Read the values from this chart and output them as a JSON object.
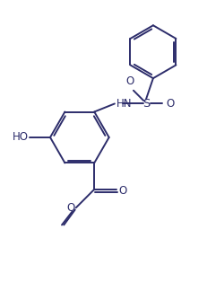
{
  "background_color": "#ffffff",
  "line_color": "#2d2d6b",
  "line_width": 1.4,
  "figsize": [
    2.32,
    3.24
  ],
  "dpi": 100,
  "xlim": [
    0,
    10
  ],
  "ylim": [
    0,
    14
  ]
}
